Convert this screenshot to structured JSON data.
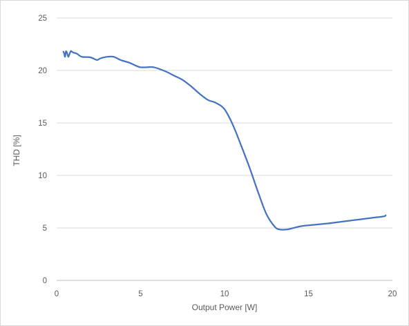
{
  "chart_data": {
    "type": "line",
    "title": "",
    "xlabel": "Output Power [W]",
    "ylabel": "THD [%]",
    "xlim": [
      0,
      20
    ],
    "ylim": [
      0,
      25
    ],
    "xticks": [
      0,
      5,
      10,
      15,
      20
    ],
    "yticks": [
      0,
      5,
      10,
      15,
      20,
      25
    ],
    "grid": "horizontal",
    "legend": "none",
    "series": [
      {
        "color": "#4472c4",
        "x": [
          0.4,
          0.45,
          0.5,
          0.55,
          0.6,
          0.65,
          0.7,
          0.75,
          0.8,
          0.85,
          0.9,
          1.0,
          1.2,
          1.5,
          2.0,
          2.4,
          2.6,
          3.0,
          3.4,
          3.8,
          4.3,
          4.8,
          5.0,
          5.3,
          5.8,
          6.5,
          7.0,
          7.5,
          8.0,
          8.5,
          9.0,
          9.5,
          10.0,
          10.5,
          11.0,
          11.5,
          12.0,
          12.5,
          13.0,
          13.3,
          13.7,
          14.0,
          14.5,
          15.0,
          16.0,
          17.0,
          18.0,
          19.0,
          19.5,
          19.6
        ],
        "y": [
          21.8,
          21.6,
          21.3,
          21.8,
          21.75,
          21.5,
          21.3,
          21.5,
          21.7,
          21.85,
          21.8,
          21.7,
          21.6,
          21.3,
          21.25,
          21.0,
          21.15,
          21.3,
          21.3,
          21.0,
          20.75,
          20.4,
          20.3,
          20.3,
          20.3,
          19.9,
          19.5,
          19.1,
          18.5,
          17.8,
          17.2,
          16.9,
          16.3,
          14.8,
          12.8,
          10.7,
          8.4,
          6.3,
          5.1,
          4.85,
          4.85,
          4.95,
          5.15,
          5.25,
          5.4,
          5.6,
          5.8,
          6.0,
          6.1,
          6.2
        ]
      }
    ]
  }
}
